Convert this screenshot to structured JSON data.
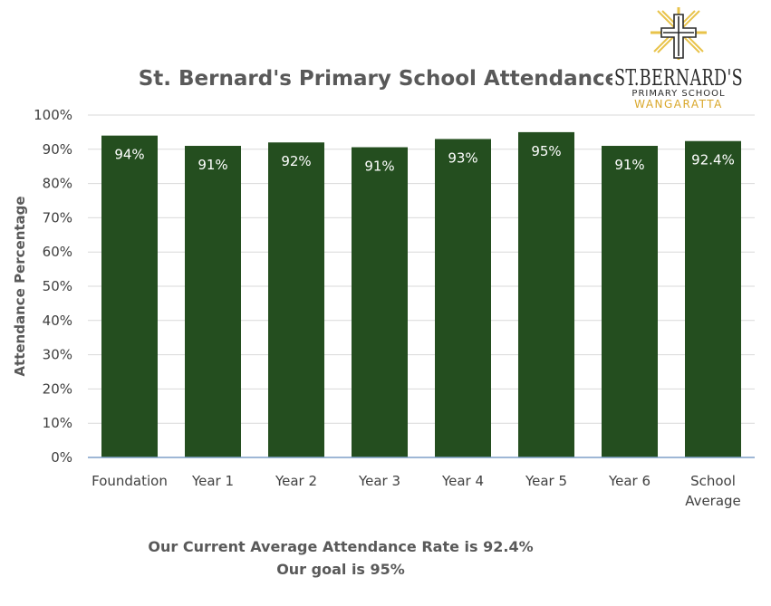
{
  "logo": {
    "name": "ST.BERNARD'S",
    "subtitle": "PRIMARY SCHOOL",
    "town": "WANGARATTA",
    "accent_color": "#e8c34a",
    "icon": "cross-emblem-icon"
  },
  "chart_data": {
    "type": "bar",
    "title": "St. Bernard's Primary School Attendance",
    "xlabel": "",
    "ylabel": "Attendance Percentage",
    "categories": [
      "Foundation",
      "Year 1",
      "Year 2",
      "Year 3",
      "Year 4",
      "Year 5",
      "Year 6",
      "School Average"
    ],
    "category_lines": [
      [
        "Foundation"
      ],
      [
        "Year 1"
      ],
      [
        "Year 2"
      ],
      [
        "Year 3"
      ],
      [
        "Year 4"
      ],
      [
        "Year 5"
      ],
      [
        "Year 6"
      ],
      [
        "School",
        "Average"
      ]
    ],
    "values": [
      94,
      91,
      92,
      90.6,
      93,
      95,
      91,
      92.4
    ],
    "data_labels": [
      "94%",
      "91%",
      "92%",
      "91%",
      "93%",
      "95%",
      "91%",
      "92.4%"
    ],
    "ylim": [
      0,
      100
    ],
    "yticks": [
      0,
      10,
      20,
      30,
      40,
      50,
      60,
      70,
      80,
      90,
      100
    ],
    "ytick_labels": [
      "0%",
      "10%",
      "20%",
      "30%",
      "40%",
      "50%",
      "60%",
      "70%",
      "80%",
      "90%",
      "100%"
    ],
    "grid": true,
    "legend": "none",
    "bar_color": "#244e1f"
  },
  "footer": {
    "line1": "Our Current Average Attendance Rate is 92.4%",
    "line2": "Our goal is 95%"
  }
}
